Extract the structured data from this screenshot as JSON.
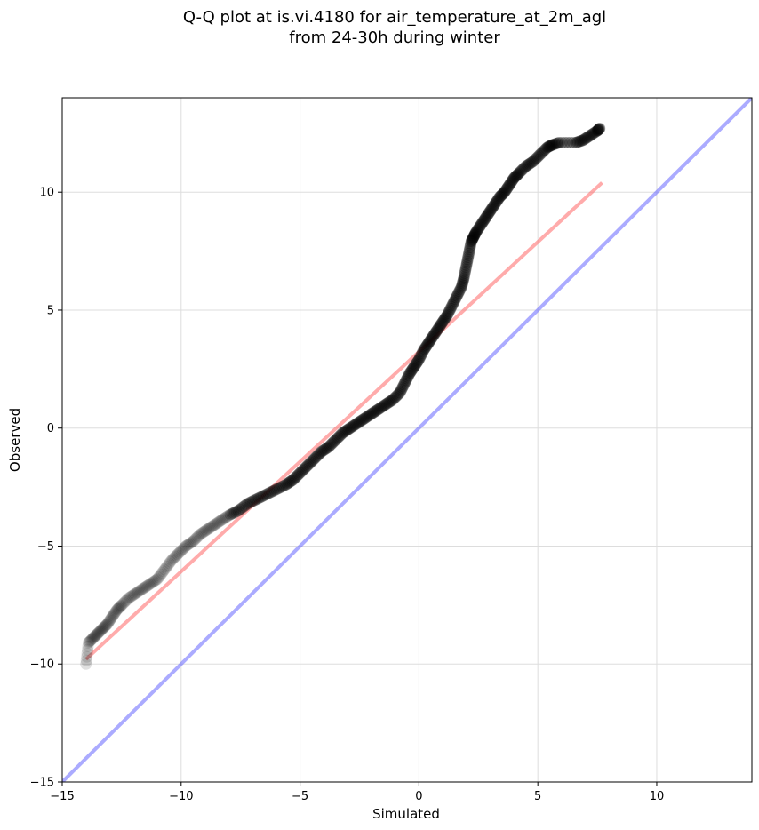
{
  "chart_data": {
    "type": "scatter",
    "title": "Q-Q plot at is.vi.4180 for air_temperature_at_2m_agl",
    "subtitle": "from 24-30h during winter",
    "xlabel": "Simulated",
    "ylabel": "Observed",
    "xlim": [
      -15,
      14
    ],
    "ylim": [
      -15,
      14
    ],
    "xticks": [
      -15,
      -10,
      -5,
      0,
      5,
      10
    ],
    "yticks": [
      -15,
      -10,
      -5,
      0,
      5,
      10
    ],
    "grid": true,
    "colors": {
      "points": "#000000",
      "fit_line": "#ff6666",
      "identity_line": "#6666ff",
      "axes": "#000000",
      "grid": "#dddddd"
    },
    "fit_line": {
      "x": [
        -14.0,
        7.7
      ],
      "y": [
        -9.8,
        10.4
      ]
    },
    "identity_line": {
      "x": [
        -15,
        14
      ],
      "y": [
        -15,
        14
      ]
    },
    "quantiles": {
      "x": [
        -14.0,
        -13.9,
        -13.7,
        -13.5,
        -13.3,
        -13.1,
        -12.9,
        -12.7,
        -12.5,
        -12.2,
        -11.9,
        -11.6,
        -11.3,
        -11.0,
        -10.7,
        -10.4,
        -10.1,
        -9.8,
        -9.5,
        -9.2,
        -8.9,
        -8.6,
        -8.3,
        -8.0,
        -7.6,
        -7.2,
        -6.8,
        -6.4,
        -6.0,
        -5.6,
        -5.3,
        -5.0,
        -4.7,
        -4.4,
        -4.1,
        -3.8,
        -3.5,
        -3.2,
        -2.9,
        -2.6,
        -2.3,
        -2.0,
        -1.7,
        -1.4,
        -1.1,
        -0.8,
        -0.6,
        -0.4,
        -0.2,
        0.0,
        0.2,
        0.4,
        0.6,
        0.8,
        1.0,
        1.2,
        1.4,
        1.6,
        1.8,
        1.9,
        2.0,
        2.1,
        2.2,
        2.3,
        2.4,
        2.6,
        2.8,
        3.0,
        3.2,
        3.4,
        3.6,
        3.8,
        4.0,
        4.2,
        4.5,
        4.8,
        5.1,
        5.4,
        5.6,
        5.9,
        6.6,
        6.9,
        7.2,
        7.5,
        7.6
      ],
      "y": [
        -10.0,
        -9.1,
        -8.9,
        -8.7,
        -8.5,
        -8.3,
        -8.0,
        -7.7,
        -7.5,
        -7.2,
        -7.0,
        -6.8,
        -6.6,
        -6.4,
        -6.0,
        -5.6,
        -5.3,
        -5.0,
        -4.8,
        -4.5,
        -4.3,
        -4.1,
        -3.9,
        -3.7,
        -3.5,
        -3.2,
        -3.0,
        -2.8,
        -2.6,
        -2.4,
        -2.2,
        -1.9,
        -1.6,
        -1.3,
        -1.0,
        -0.8,
        -0.5,
        -0.2,
        0.0,
        0.2,
        0.4,
        0.6,
        0.8,
        1.0,
        1.2,
        1.5,
        1.9,
        2.3,
        2.6,
        2.9,
        3.3,
        3.6,
        3.9,
        4.2,
        4.5,
        4.8,
        5.2,
        5.6,
        6.0,
        6.4,
        6.9,
        7.4,
        7.9,
        8.1,
        8.3,
        8.6,
        8.9,
        9.2,
        9.5,
        9.8,
        10.0,
        10.3,
        10.6,
        10.8,
        11.1,
        11.3,
        11.6,
        11.9,
        12.0,
        12.1,
        12.1,
        12.2,
        12.4,
        12.6,
        12.7
      ]
    }
  }
}
